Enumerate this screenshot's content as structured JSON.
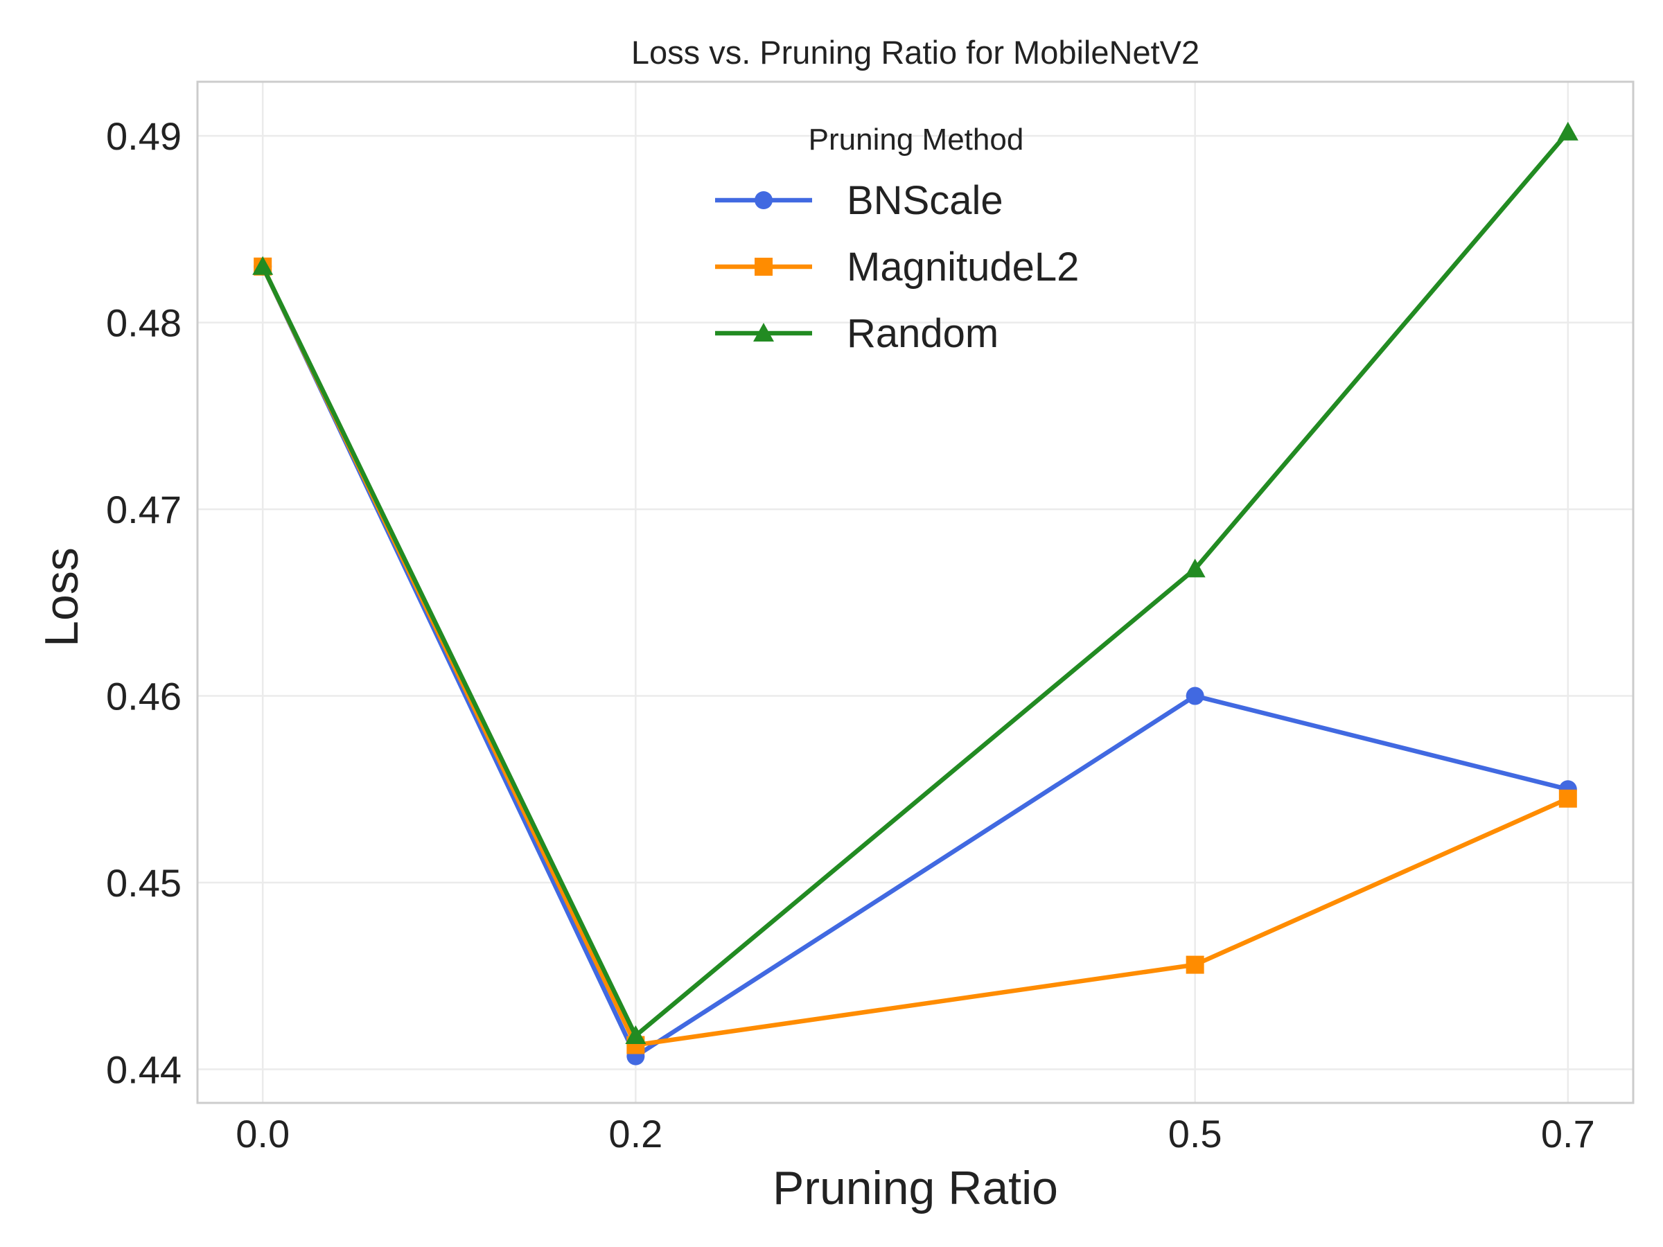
{
  "chart_data": {
    "type": "line",
    "title": "Loss vs. Pruning Ratio for MobileNetV2",
    "xlabel": "Pruning Ratio",
    "ylabel": "Loss",
    "x": [
      0.0,
      0.2,
      0.5,
      0.7
    ],
    "x_tick_labels": [
      "0.0",
      "0.2",
      "0.5",
      "0.7"
    ],
    "xlim": [
      -0.035,
      0.735
    ],
    "ylim": [
      0.4382,
      0.4929
    ],
    "y_ticks": [
      0.44,
      0.45,
      0.46,
      0.47,
      0.48,
      0.49
    ],
    "y_tick_labels": [
      "0.44",
      "0.45",
      "0.46",
      "0.47",
      "0.48",
      "0.49"
    ],
    "grid": true,
    "legend": {
      "title": "Pruning Method",
      "placement": "upper-center"
    },
    "series": [
      {
        "name": "BNScale",
        "color": "#4169e1",
        "marker": "circle",
        "values": [
          0.483,
          0.4407,
          0.46,
          0.455
        ]
      },
      {
        "name": "MagnitudeL2",
        "color": "#ff8c00",
        "marker": "square",
        "values": [
          0.483,
          0.4413,
          0.4456,
          0.4545
        ]
      },
      {
        "name": "Random",
        "color": "#228b22",
        "marker": "triangle",
        "values": [
          0.483,
          0.4418,
          0.4668,
          0.4902
        ]
      }
    ]
  }
}
